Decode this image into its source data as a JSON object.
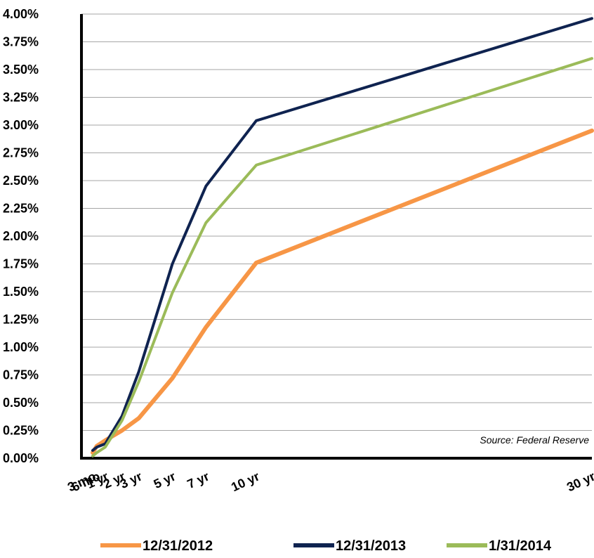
{
  "chart_data": {
    "type": "line",
    "title": "",
    "xlabel": "",
    "ylabel": "",
    "x": [
      "3 mo",
      "6 mo",
      "1 yr",
      "2 yr",
      "3 yr",
      "5 yr",
      "7 yr",
      "10 yr",
      "30 yr"
    ],
    "x_years": [
      0.25,
      0.5,
      1,
      2,
      3,
      5,
      7,
      10,
      30
    ],
    "ylim": [
      0,
      4
    ],
    "yticks": [
      "0.00%",
      "0.25%",
      "0.50%",
      "0.75%",
      "1.00%",
      "1.25%",
      "1.50%",
      "1.75%",
      "2.00%",
      "2.25%",
      "2.50%",
      "2.75%",
      "3.00%",
      "3.25%",
      "3.50%",
      "3.75%",
      "4.00%"
    ],
    "series": [
      {
        "name": "12/31/2012",
        "color": "#f79646",
        "values": [
          0.05,
          0.11,
          0.16,
          0.25,
          0.36,
          0.72,
          1.18,
          1.76,
          2.95
        ]
      },
      {
        "name": "12/31/2013",
        "color": "#0f2350",
        "values": [
          0.07,
          0.1,
          0.13,
          0.38,
          0.78,
          1.75,
          2.45,
          3.04,
          3.96
        ]
      },
      {
        "name": "1/31/2014",
        "color": "#9bbb59",
        "values": [
          0.02,
          0.05,
          0.1,
          0.34,
          0.69,
          1.49,
          2.12,
          2.64,
          3.6
        ]
      }
    ],
    "annotations": [
      "Source: Federal Reserve"
    ],
    "grid": true,
    "legend_position": "bottom"
  }
}
